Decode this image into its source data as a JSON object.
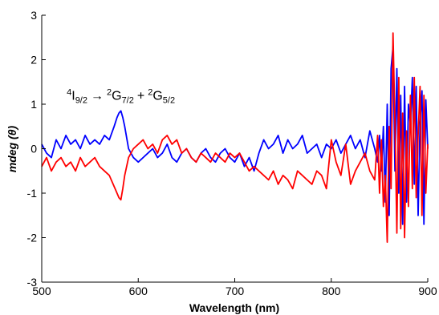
{
  "chart_data": {
    "type": "line",
    "title": "",
    "xlabel": "Wavelength (nm)",
    "ylabel": "mdeg (θ)",
    "xlim": [
      500,
      900
    ],
    "ylim": [
      -3,
      3
    ],
    "x_ticks": [
      "500",
      "600",
      "700",
      "800",
      "900"
    ],
    "y_ticks": [
      "3",
      "2",
      "1",
      "0",
      "-1",
      "-2",
      "-3"
    ],
    "grid": false,
    "legend": "none",
    "annotation": {
      "a_sup": "4",
      "a_base": "I",
      "a_sub": "9/2",
      "arrow": "→",
      "b_sup": "2",
      "b_base": "G",
      "b_sub": "7/2",
      "plus": "+",
      "c_sup": "2",
      "c_base": "G",
      "c_sub": "5/2",
      "x": 582,
      "y": 1.1
    },
    "series": [
      {
        "color": "#0000ff",
        "x": [
          500,
          505,
          510,
          515,
          520,
          525,
          530,
          535,
          540,
          545,
          550,
          555,
          560,
          565,
          570,
          575,
          578,
          580,
          582,
          584,
          586,
          590,
          595,
          600,
          605,
          610,
          615,
          620,
          625,
          630,
          635,
          640,
          645,
          650,
          655,
          660,
          665,
          670,
          675,
          680,
          685,
          690,
          695,
          700,
          705,
          710,
          715,
          720,
          725,
          730,
          735,
          740,
          745,
          750,
          755,
          760,
          765,
          770,
          775,
          780,
          785,
          790,
          795,
          800,
          805,
          810,
          815,
          820,
          825,
          830,
          835,
          840,
          845,
          848,
          850,
          852,
          854,
          856,
          858,
          860,
          862,
          864,
          866,
          868,
          870,
          872,
          874,
          876,
          878,
          880,
          882,
          884,
          886,
          888,
          890,
          892,
          894,
          896,
          898,
          900
        ],
        "y": [
          0.1,
          -0.1,
          -0.2,
          0.2,
          0.0,
          0.3,
          0.1,
          0.2,
          0.0,
          0.3,
          0.1,
          0.2,
          0.1,
          0.3,
          0.2,
          0.5,
          0.7,
          0.8,
          0.85,
          0.7,
          0.5,
          0.0,
          -0.2,
          -0.3,
          -0.2,
          -0.1,
          0.0,
          -0.2,
          -0.1,
          0.1,
          -0.2,
          -0.3,
          -0.1,
          0.0,
          -0.2,
          -0.3,
          -0.1,
          0.0,
          -0.2,
          -0.3,
          -0.1,
          0.0,
          -0.2,
          -0.3,
          -0.1,
          -0.4,
          -0.2,
          -0.5,
          -0.1,
          0.2,
          0.0,
          0.1,
          0.3,
          -0.1,
          0.2,
          0.0,
          0.1,
          0.3,
          -0.1,
          0.0,
          0.1,
          -0.2,
          0.1,
          0.0,
          0.2,
          -0.1,
          0.1,
          0.3,
          0.0,
          0.2,
          -0.2,
          0.4,
          0.0,
          -0.3,
          0.3,
          -0.5,
          0.5,
          -1.2,
          1.0,
          -1.5,
          1.8,
          2.3,
          -0.5,
          1.8,
          -1.0,
          1.2,
          -1.7,
          1.4,
          -1.2,
          1.0,
          0.5,
          1.6,
          -0.8,
          1.4,
          -1.5,
          0.6,
          1.3,
          -1.7,
          1.1,
          0.0
        ]
      },
      {
        "color": "#ff0000",
        "x": [
          500,
          505,
          510,
          515,
          520,
          525,
          530,
          535,
          540,
          545,
          550,
          555,
          560,
          565,
          570,
          574,
          576,
          578,
          580,
          582,
          584,
          586,
          590,
          595,
          600,
          605,
          610,
          615,
          620,
          625,
          630,
          635,
          640,
          645,
          650,
          655,
          660,
          665,
          670,
          675,
          680,
          685,
          690,
          695,
          700,
          705,
          710,
          715,
          720,
          725,
          730,
          735,
          740,
          745,
          750,
          755,
          760,
          765,
          770,
          775,
          780,
          785,
          790,
          795,
          800,
          805,
          810,
          815,
          820,
          825,
          830,
          835,
          840,
          845,
          848,
          850,
          852,
          854,
          856,
          858,
          860,
          862,
          864,
          866,
          868,
          870,
          872,
          874,
          876,
          878,
          880,
          882,
          884,
          886,
          888,
          890,
          892,
          894,
          896,
          898,
          900
        ],
        "y": [
          -0.4,
          -0.2,
          -0.5,
          -0.3,
          -0.2,
          -0.4,
          -0.3,
          -0.5,
          -0.2,
          -0.4,
          -0.3,
          -0.2,
          -0.4,
          -0.5,
          -0.6,
          -0.8,
          -0.9,
          -1.0,
          -1.1,
          -1.15,
          -0.9,
          -0.6,
          -0.2,
          0.0,
          0.1,
          0.2,
          0.0,
          0.1,
          -0.1,
          0.2,
          0.3,
          0.1,
          0.2,
          -0.1,
          0.0,
          -0.2,
          -0.3,
          -0.1,
          -0.2,
          -0.3,
          -0.1,
          -0.2,
          -0.3,
          -0.1,
          -0.2,
          -0.1,
          -0.3,
          -0.5,
          -0.4,
          -0.5,
          -0.6,
          -0.7,
          -0.5,
          -0.8,
          -0.6,
          -0.7,
          -0.9,
          -0.5,
          -0.6,
          -0.7,
          -0.8,
          -0.5,
          -0.6,
          -0.9,
          0.2,
          -0.3,
          -0.6,
          0.1,
          -0.8,
          -0.5,
          -0.3,
          -0.1,
          -0.5,
          -0.7,
          0.3,
          -1.0,
          0.2,
          -1.3,
          -0.6,
          -2.1,
          0.5,
          -0.9,
          2.6,
          0.6,
          -1.9,
          1.6,
          -1.8,
          0.8,
          -2.0,
          0.4,
          -1.3,
          1.2,
          -0.9,
          1.6,
          -1.1,
          0.3,
          1.4,
          -1.5,
          1.2,
          -1.0,
          0.1
        ]
      }
    ]
  }
}
